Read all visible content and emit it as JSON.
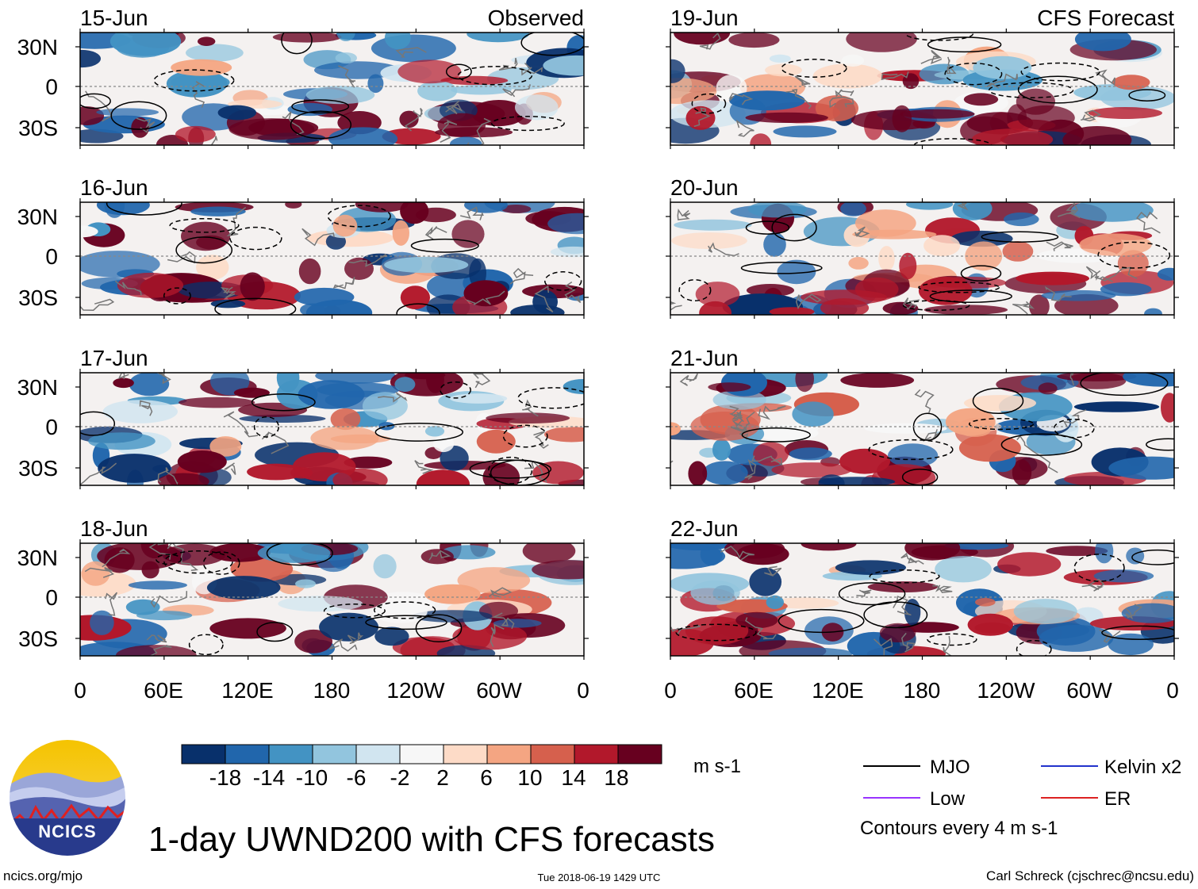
{
  "chart_data": [
    {
      "type": "heatmap",
      "panel": "left",
      "title": "15-Jun",
      "title_right": "Observed"
    },
    {
      "type": "heatmap",
      "panel": "left",
      "title": "16-Jun"
    },
    {
      "type": "heatmap",
      "panel": "left",
      "title": "17-Jun"
    },
    {
      "type": "heatmap",
      "panel": "left",
      "title": "18-Jun"
    },
    {
      "type": "heatmap",
      "panel": "right",
      "title": "19-Jun",
      "title_right": "CFS Forecast"
    },
    {
      "type": "heatmap",
      "panel": "right",
      "title": "20-Jun"
    },
    {
      "type": "heatmap",
      "panel": "right",
      "title": "21-Jun"
    },
    {
      "type": "heatmap",
      "panel": "right",
      "title": "22-Jun"
    }
  ],
  "axes": {
    "y_ticks": [
      "30N",
      "0",
      "30S"
    ],
    "x_ticks": [
      "0",
      "60E",
      "120E",
      "180",
      "120W",
      "60W",
      "0"
    ]
  },
  "colorbar": {
    "colors": [
      "#08306b",
      "#2166ac",
      "#4393c3",
      "#92c5de",
      "#d1e5f0",
      "#f7f7f7",
      "#fddbc7",
      "#f4a582",
      "#d6604d",
      "#b2182b",
      "#67001f"
    ],
    "tick_labels": [
      "-18",
      "-14",
      "-10",
      "-6",
      "-2",
      "2",
      "6",
      "10",
      "14",
      "18"
    ],
    "units": "m s-1"
  },
  "legend": {
    "items": [
      {
        "label": "MJO",
        "color": "#000000"
      },
      {
        "label": "Kelvin x2",
        "color": "#2233cc"
      },
      {
        "label": "Low",
        "color": "#9933ff"
      },
      {
        "label": "ER",
        "color": "#dd2222"
      }
    ],
    "note": "Contours every 4 m s-1"
  },
  "logo": {
    "text": "NCICS"
  },
  "footer": {
    "title": "1-day UWND200 with CFS forecasts",
    "url": "ncics.org/mjo",
    "timestamp": "Tue 2018-06-19 1429 UTC",
    "credit": "Carl Schreck (cjschrec@ncsu.edu)"
  },
  "colors": {
    "neg_dark": "#08306b",
    "pos_dark": "#67001f",
    "contour": "#000000",
    "coast": "#777777",
    "equator": "#888888"
  }
}
